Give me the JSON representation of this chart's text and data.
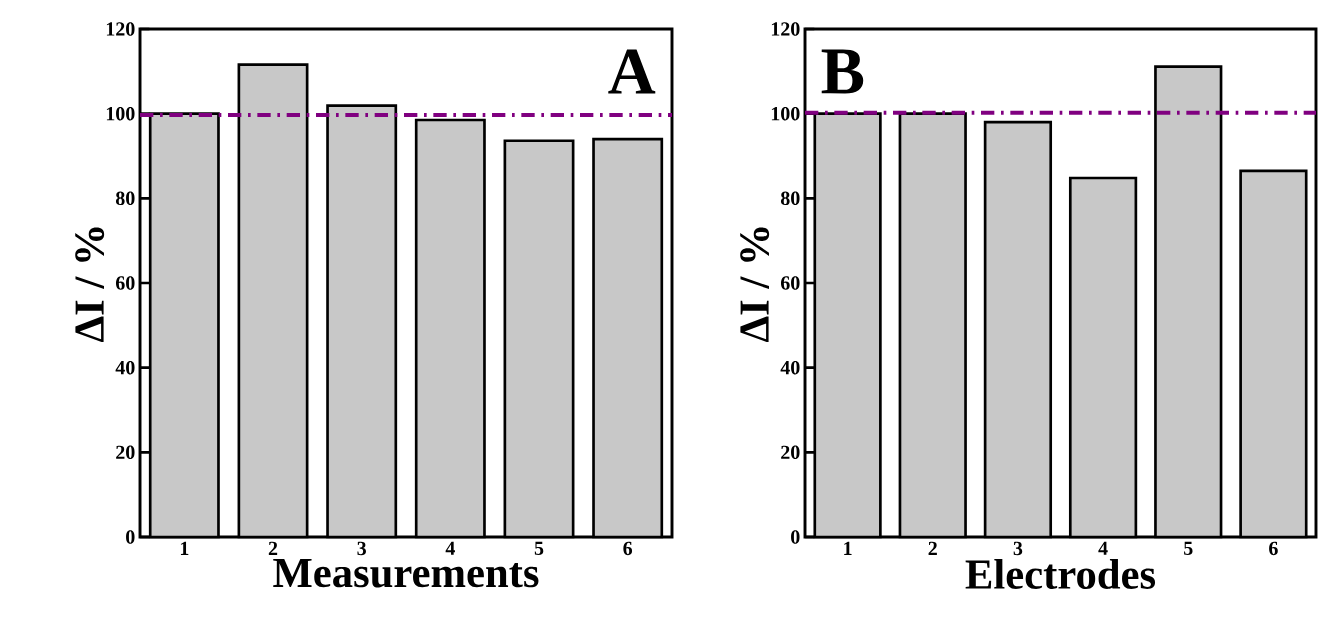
{
  "chart_data": [
    {
      "type": "bar",
      "xlabel": "Measurements",
      "ylabel": "ΔI / %",
      "annotations": [
        "A"
      ],
      "categories": [
        "1",
        "2",
        "3",
        "4",
        "5",
        "6"
      ],
      "values": [
        100,
        111.6,
        101.9,
        98.5,
        93.6,
        94
      ],
      "color": "#c8c8c8",
      "ylim": [
        0,
        120
      ],
      "yticks": [
        0,
        20,
        40,
        60,
        80,
        100,
        120
      ],
      "ref_lines": [
        {
          "axis": "y",
          "value": 99.7,
          "color": "#800080",
          "line_style": "dashdot"
        }
      ]
    },
    {
      "type": "bar",
      "xlabel": "Electrodes",
      "ylabel": "ΔI / %",
      "annotations": [
        "B"
      ],
      "categories": [
        "1",
        "2",
        "3",
        "4",
        "5",
        "6"
      ],
      "values": [
        100,
        100,
        98,
        84.8,
        111.1,
        86.5
      ],
      "color": "#c8c8c8",
      "ylim": [
        0,
        120
      ],
      "yticks": [
        0,
        20,
        40,
        60,
        80,
        100,
        120
      ],
      "ref_lines": [
        {
          "axis": "y",
          "value": 100.2,
          "color": "#800080",
          "line_style": "dashdot"
        }
      ]
    }
  ]
}
